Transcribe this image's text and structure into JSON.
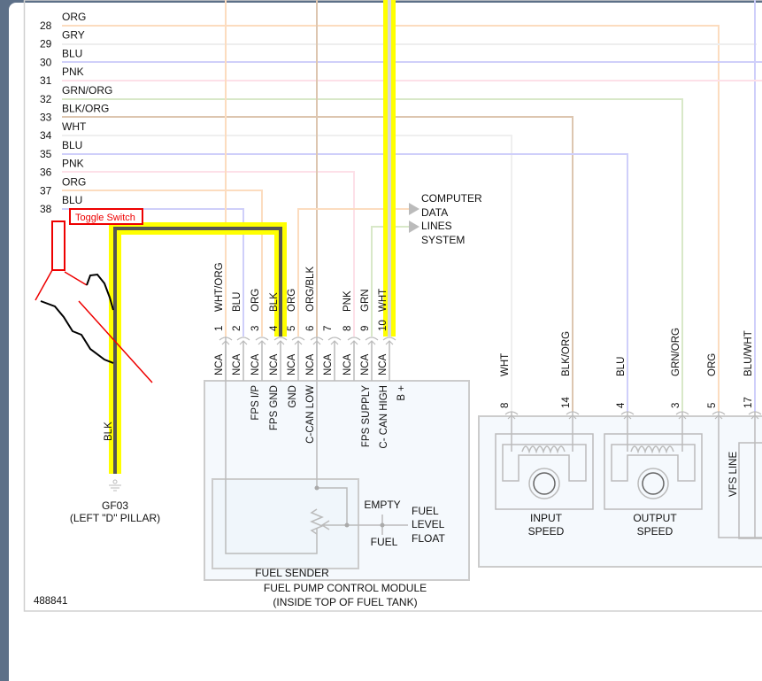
{
  "diagram_id": "488841",
  "harness_wires": [
    {
      "pin": "28",
      "color": "ORG"
    },
    {
      "pin": "29",
      "color": "GRY"
    },
    {
      "pin": "30",
      "color": "BLU"
    },
    {
      "pin": "31",
      "color": "PNK"
    },
    {
      "pin": "32",
      "color": "GRN/ORG"
    },
    {
      "pin": "33",
      "color": "BLK/ORG"
    },
    {
      "pin": "34",
      "color": "WHT"
    },
    {
      "pin": "35",
      "color": "BLU"
    },
    {
      "pin": "36",
      "color": "PNK"
    },
    {
      "pin": "37",
      "color": "ORG"
    },
    {
      "pin": "38",
      "color": "BLU"
    }
  ],
  "annotation": {
    "label": "Toggle Switch",
    "color": "#ee0000"
  },
  "ground": {
    "wire": "BLK",
    "id": "GF03",
    "location": "(LEFT \"D\" PILLAR)"
  },
  "fpcm": {
    "title": "FUEL PUMP CONTROL MODULE",
    "subtitle": "(INSIDE TOP OF FUEL TANK)",
    "pins": [
      {
        "num": "1",
        "color": "WHT/ORG",
        "nca": "NCA",
        "func": ""
      },
      {
        "num": "2",
        "color": "BLU",
        "nca": "NCA",
        "func": "FPS I/P"
      },
      {
        "num": "3",
        "color": "ORG",
        "nca": "NCA",
        "func": "FPS GND"
      },
      {
        "num": "4",
        "color": "BLK",
        "nca": "NCA",
        "func": "GND"
      },
      {
        "num": "5",
        "color": "ORG",
        "nca": "NCA",
        "func": "C-CAN LOW"
      },
      {
        "num": "6",
        "color": "ORG/BLK",
        "nca": "NCA",
        "func": ""
      },
      {
        "num": "7",
        "color": "",
        "nca": "NCA",
        "func": ""
      },
      {
        "num": "8",
        "color": "PNK",
        "nca": "NCA",
        "func": "FPS SUPPLY"
      },
      {
        "num": "9",
        "color": "GRN",
        "nca": "NCA",
        "func": "C- CAN HIGH"
      },
      {
        "num": "10",
        "color": "WHT",
        "nca": "NCA",
        "func": "B +"
      }
    ],
    "sender": {
      "label": "FUEL SENDER",
      "empty": "EMPTY",
      "fuel": "FUEL",
      "float": [
        "FUEL",
        "LEVEL",
        "FLOAT"
      ]
    }
  },
  "computer_data": [
    "COMPUTER",
    "DATA",
    "LINES",
    "SYSTEM"
  ],
  "trans_connector": {
    "pins": [
      {
        "num": "8",
        "color": "WHT"
      },
      {
        "num": "14",
        "color": "BLK/ORG"
      },
      {
        "num": "4",
        "color": "BLU"
      },
      {
        "num": "3",
        "color": "GRN/ORG"
      },
      {
        "num": "5",
        "color": "ORG"
      },
      {
        "num": "17",
        "color": "BLU/WHT"
      }
    ],
    "input_speed": [
      "INPUT",
      "SPEED"
    ],
    "output_speed": [
      "OUTPUT",
      "SPEED"
    ],
    "vfs": "VFS LINE"
  },
  "highlight_colors": {
    "wire": "#555555",
    "glow": "#ffff00"
  }
}
